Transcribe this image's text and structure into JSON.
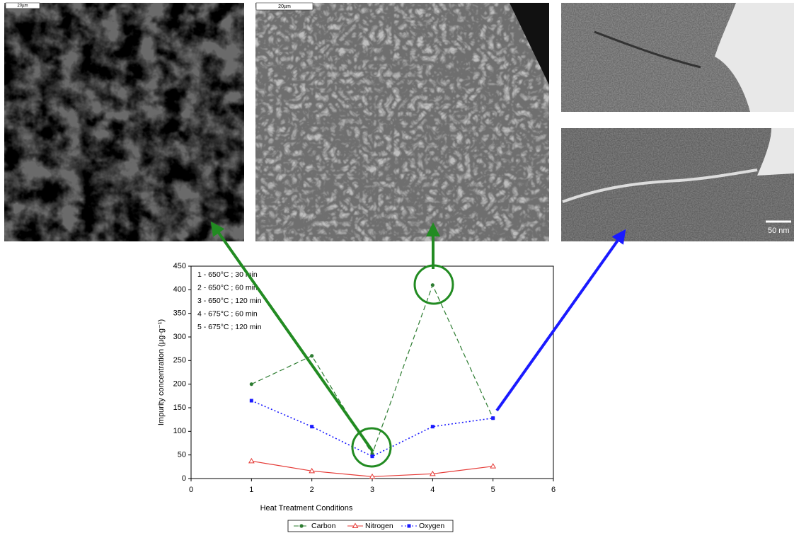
{
  "figure": {
    "scale_labels": [
      "20µm",
      "20µm",
      "50 nm"
    ]
  },
  "chart_data": {
    "type": "line",
    "x_label": "Heat Treatment Conditions",
    "y_label": "Impurity concentration (µg·g⁻¹)",
    "annotations": [
      "1 - 650°C ; 30 min",
      "2 - 650°C ; 60 min",
      "3 - 650°C ; 120 min",
      "4 - 675°C ; 60 min",
      "5 - 675°C ; 120 min"
    ],
    "x": [
      1,
      2,
      3,
      4,
      5
    ],
    "series": [
      {
        "name": "Carbon",
        "color": "#2e7d32",
        "values": [
          200,
          260,
          52,
          410,
          128
        ]
      },
      {
        "name": "Nitrogen",
        "color": "#e53935",
        "values": [
          37,
          16,
          4,
          10,
          26
        ]
      },
      {
        "name": "Oxygen",
        "color": "#1a1aff",
        "values": [
          165,
          110,
          47,
          110,
          128
        ]
      }
    ],
    "xlim": [
      0,
      6
    ],
    "xticks": [
      0,
      1,
      2,
      3,
      4,
      5,
      6
    ],
    "ylim": [
      0,
      450
    ],
    "yticks": [
      0,
      50,
      100,
      150,
      200,
      250,
      300,
      350,
      400,
      450
    ]
  }
}
